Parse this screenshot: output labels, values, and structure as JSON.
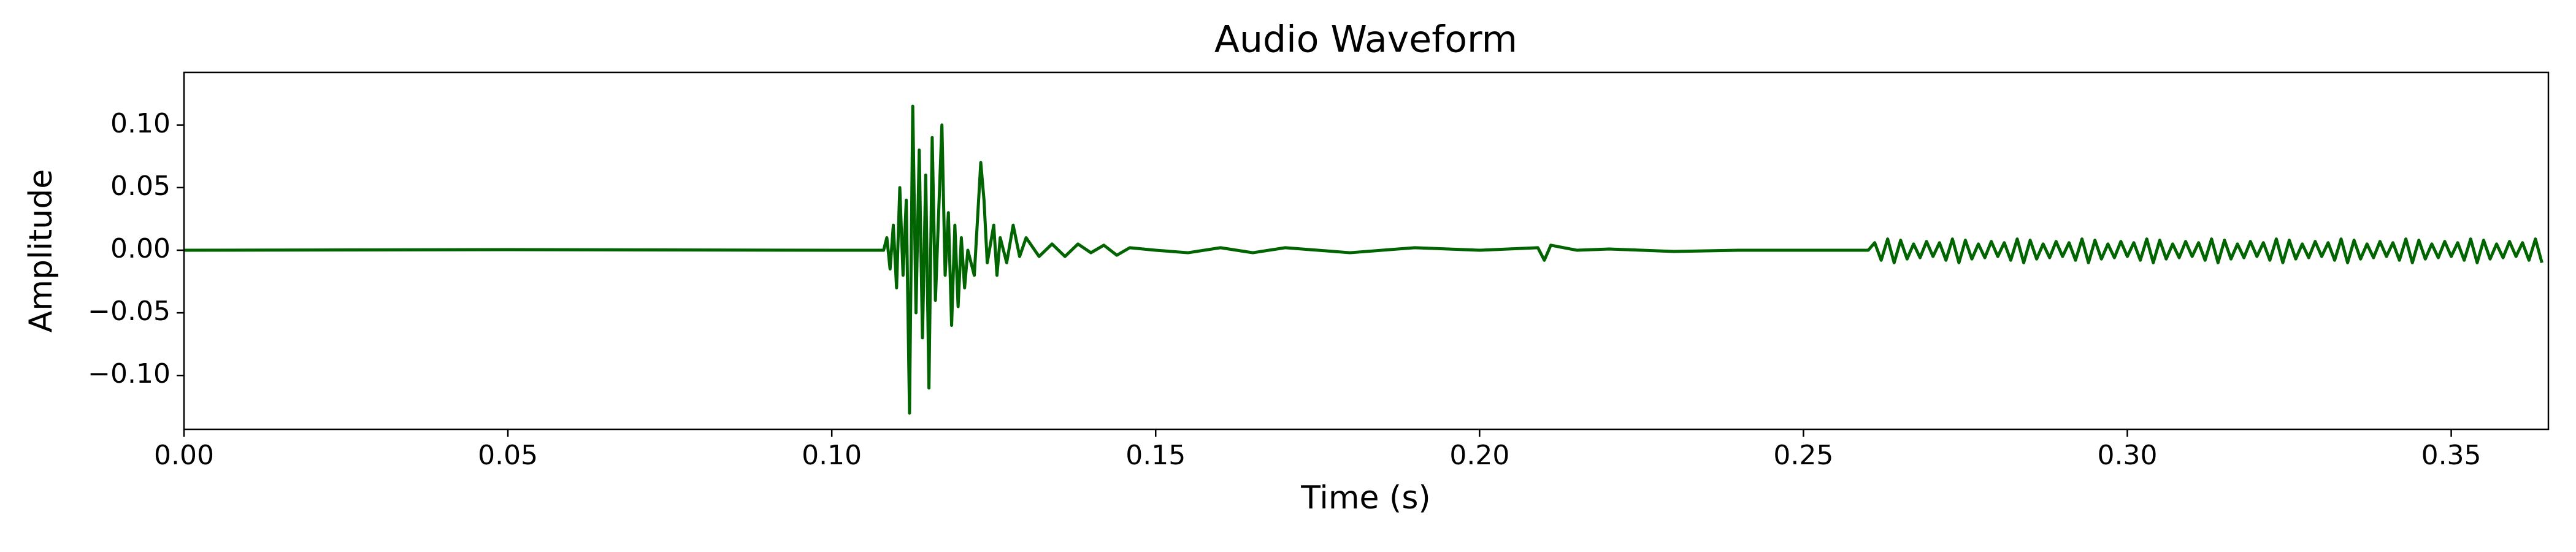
{
  "chart_data": {
    "type": "line",
    "title": "Audio Waveform",
    "x_label": "Time (s)",
    "y_label": "Amplitude",
    "xlim": [
      0,
      0.365
    ],
    "ylim": [
      -0.143,
      0.142
    ],
    "xticks": [
      {
        "value": 0,
        "label": "0.00"
      },
      {
        "value": 0.05,
        "label": "0.05"
      },
      {
        "value": 0.1,
        "label": "0.10"
      },
      {
        "value": 0.15,
        "label": "0.15"
      },
      {
        "value": 0.2,
        "label": "0.20"
      },
      {
        "value": 0.25,
        "label": "0.25"
      },
      {
        "value": 0.3,
        "label": "0.30"
      },
      {
        "value": 0.35,
        "label": "0.35"
      }
    ],
    "yticks": [
      {
        "value": -0.1,
        "label": "−0.10"
      },
      {
        "value": -0.05,
        "label": "−0.05"
      },
      {
        "value": 0,
        "label": "0.00"
      },
      {
        "value": 0.05,
        "label": "0.05"
      },
      {
        "value": 0.1,
        "label": "0.10"
      }
    ],
    "grid": false,
    "series": [
      {
        "name": "Amplitude",
        "color": "#006400",
        "x": [
          0,
          0.05,
          0.1,
          0.108,
          0.1085,
          0.109,
          0.1095,
          0.11,
          0.1105,
          0.111,
          0.1115,
          0.112,
          0.1125,
          0.113,
          0.1135,
          0.114,
          0.1145,
          0.115,
          0.1155,
          0.116,
          0.1165,
          0.117,
          0.1175,
          0.118,
          0.1185,
          0.119,
          0.1195,
          0.12,
          0.1205,
          0.121,
          0.122,
          0.123,
          0.1235,
          0.124,
          0.125,
          0.1255,
          0.126,
          0.127,
          0.128,
          0.129,
          0.13,
          0.132,
          0.134,
          0.136,
          0.138,
          0.14,
          0.142,
          0.144,
          0.146,
          0.15,
          0.155,
          0.16,
          0.165,
          0.17,
          0.18,
          0.19,
          0.2,
          0.209,
          0.21,
          0.211,
          0.215,
          0.22,
          0.23,
          0.24,
          0.26,
          0.261,
          0.262,
          0.263,
          0.264,
          0.265,
          0.266,
          0.267,
          0.268,
          0.269,
          0.27,
          0.271,
          0.272,
          0.273,
          0.274,
          0.275,
          0.276,
          0.277,
          0.278,
          0.279,
          0.28,
          0.281,
          0.282,
          0.283,
          0.284,
          0.285,
          0.286,
          0.287,
          0.288,
          0.289,
          0.29,
          0.291,
          0.292,
          0.293,
          0.294,
          0.295,
          0.296,
          0.297,
          0.298,
          0.299,
          0.3,
          0.301,
          0.302,
          0.303,
          0.304,
          0.305,
          0.306,
          0.307,
          0.308,
          0.309,
          0.31,
          0.311,
          0.312,
          0.313,
          0.314,
          0.315,
          0.316,
          0.317,
          0.318,
          0.319,
          0.32,
          0.321,
          0.322,
          0.323,
          0.324,
          0.325,
          0.326,
          0.327,
          0.328,
          0.329,
          0.33,
          0.331,
          0.332,
          0.333,
          0.334,
          0.335,
          0.336,
          0.337,
          0.338,
          0.339,
          0.34,
          0.341,
          0.342,
          0.343,
          0.344,
          0.345,
          0.346,
          0.347,
          0.348,
          0.349,
          0.35,
          0.351,
          0.352,
          0.353,
          0.354,
          0.355,
          0.356,
          0.357,
          0.358,
          0.359,
          0.36,
          0.361,
          0.362,
          0.363,
          0.364
        ],
        "values": [
          0,
          0.0005,
          0,
          0,
          0.01,
          -0.015,
          0.02,
          -0.03,
          0.05,
          -0.02,
          0.04,
          -0.13,
          0.115,
          -0.05,
          0.08,
          -0.07,
          0.06,
          -0.11,
          0.09,
          -0.04,
          0.03,
          0.1,
          -0.02,
          0.03,
          -0.06,
          0.02,
          -0.045,
          0.01,
          -0.03,
          0,
          -0.02,
          0.07,
          0.04,
          -0.01,
          0.02,
          -0.02,
          0.01,
          -0.01,
          0.02,
          -0.005,
          0.01,
          -0.005,
          0.005,
          -0.005,
          0.005,
          -0.002,
          0.004,
          -0.004,
          0.002,
          0,
          -0.002,
          0.002,
          -0.002,
          0.002,
          -0.002,
          0.002,
          0,
          0.002,
          -0.008,
          0.004,
          0,
          0.001,
          -0.001,
          0,
          0,
          0.006,
          -0.008,
          0.009,
          -0.01,
          0.008,
          -0.007,
          0.005,
          -0.006,
          0.007,
          -0.005,
          0.006,
          -0.008,
          0.009,
          -0.01,
          0.008,
          -0.007,
          0.005,
          -0.006,
          0.007,
          -0.005,
          0.006,
          -0.008,
          0.009,
          -0.01,
          0.008,
          -0.007,
          0.005,
          -0.006,
          0.007,
          -0.005,
          0.006,
          -0.008,
          0.009,
          -0.01,
          0.008,
          -0.007,
          0.005,
          -0.006,
          0.007,
          -0.005,
          0.006,
          -0.008,
          0.009,
          -0.01,
          0.008,
          -0.007,
          0.005,
          -0.006,
          0.007,
          -0.005,
          0.006,
          -0.008,
          0.009,
          -0.01,
          0.008,
          -0.007,
          0.005,
          -0.006,
          0.007,
          -0.005,
          0.006,
          -0.008,
          0.009,
          -0.01,
          0.008,
          -0.007,
          0.005,
          -0.006,
          0.007,
          -0.005,
          0.006,
          -0.008,
          0.009,
          -0.01,
          0.008,
          -0.007,
          0.005,
          -0.006,
          0.007,
          -0.005,
          0.006,
          -0.008,
          0.009,
          -0.01,
          0.008,
          -0.007,
          0.005,
          -0.006,
          0.007,
          -0.005,
          0.006,
          -0.008,
          0.009,
          -0.01,
          0.008,
          -0.007,
          0.005,
          -0.006,
          0.007,
          -0.005,
          0.006,
          -0.008,
          0.009,
          -0.01
        ]
      }
    ]
  }
}
